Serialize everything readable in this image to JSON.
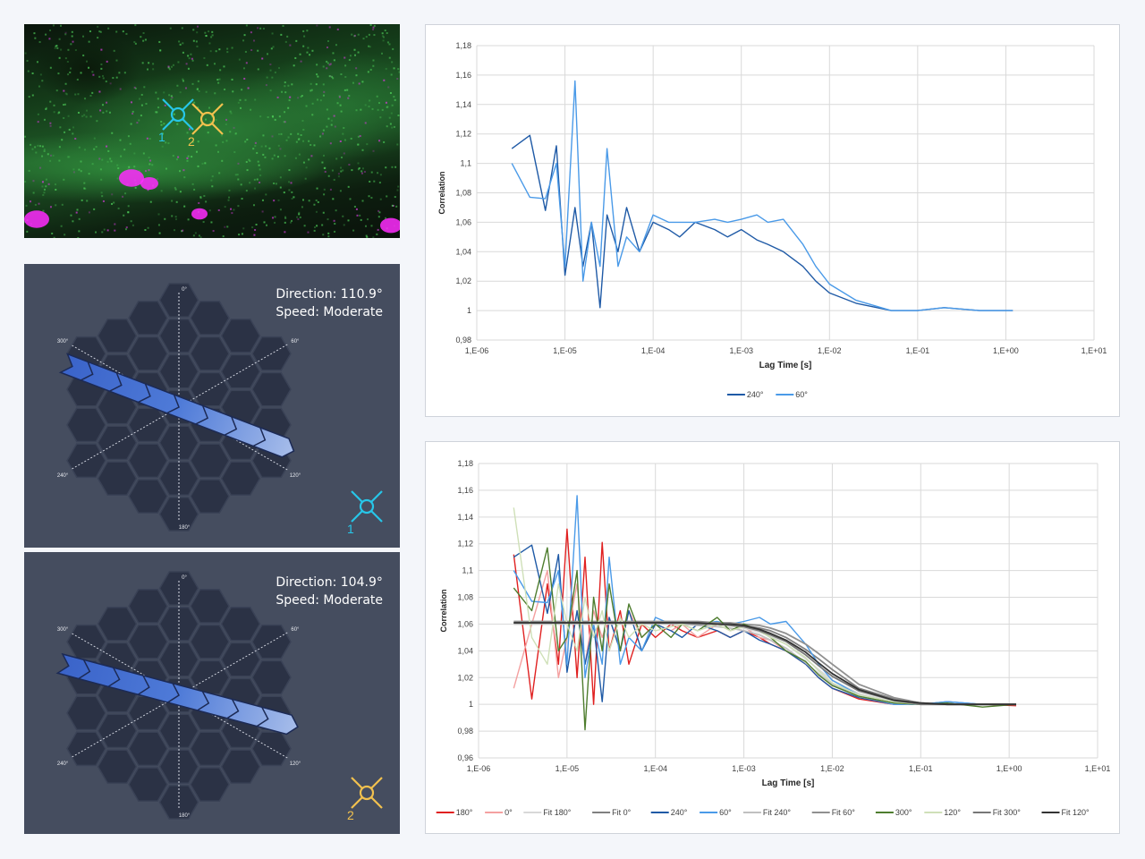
{
  "microscopy": {
    "markers": [
      {
        "label": "1",
        "color": "#27c6e8"
      },
      {
        "label": "2",
        "color": "#f2c14e"
      }
    ]
  },
  "panels": [
    {
      "direction": "Direction: 110.9°",
      "speed": "Speed: Moderate",
      "marker_label": "1",
      "marker_color": "#27c6e8",
      "angle": 110.9,
      "angle_labels": [
        "0°",
        "60°",
        "120°",
        "180°",
        "240°",
        "300°"
      ]
    },
    {
      "direction": "Direction: 104.9°",
      "speed": "Speed: Moderate",
      "marker_label": "2",
      "marker_color": "#f2c14e",
      "angle": 104.9,
      "angle_labels": [
        "0°",
        "60°",
        "120°",
        "180°",
        "240°",
        "300°"
      ]
    }
  ],
  "chart_data": [
    {
      "type": "line",
      "xscale": "log",
      "xlabel": "Lag Time [s]",
      "ylabel": "Correlation",
      "xlim": [
        1e-06,
        10
      ],
      "ylim": [
        0.98,
        1.18
      ],
      "grid": true,
      "legend": "bottom",
      "xticks": [
        "1,E-06",
        "1,E-05",
        "1,E-04",
        "1,E-03",
        "1,E-02",
        "1,E-01",
        "1,E+00",
        "1,E+01"
      ],
      "yticks": [
        "0,98",
        "1",
        "1,02",
        "1,04",
        "1,06",
        "1,08",
        "1,1",
        "1,12",
        "1,14",
        "1,16",
        "1,18"
      ],
      "x": [
        2.5e-06,
        4e-06,
        6e-06,
        8e-06,
        1e-05,
        1.3e-05,
        1.6e-05,
        2e-05,
        2.5e-05,
        3e-05,
        4e-05,
        5e-05,
        7e-05,
        0.0001,
        0.00015,
        0.0002,
        0.0003,
        0.0005,
        0.0007,
        0.001,
        0.0015,
        0.002,
        0.003,
        0.005,
        0.007,
        0.01,
        0.02,
        0.05,
        0.1,
        0.2,
        0.5,
        1.2
      ],
      "series": [
        {
          "name": "240°",
          "color": "#1f5aa6",
          "values": [
            1.11,
            1.119,
            1.068,
            1.112,
            1.024,
            1.07,
            1.03,
            1.06,
            1.002,
            1.065,
            1.04,
            1.07,
            1.04,
            1.06,
            1.055,
            1.05,
            1.06,
            1.055,
            1.05,
            1.055,
            1.048,
            1.045,
            1.04,
            1.03,
            1.02,
            1.012,
            1.005,
            1.0,
            1.0,
            1.002,
            1.0,
            1.0
          ]
        },
        {
          "name": "60°",
          "color": "#4a9ae8",
          "values": [
            1.1,
            1.077,
            1.076,
            1.1,
            1.03,
            1.156,
            1.02,
            1.06,
            1.03,
            1.11,
            1.03,
            1.05,
            1.04,
            1.065,
            1.06,
            1.06,
            1.06,
            1.062,
            1.06,
            1.062,
            1.065,
            1.06,
            1.062,
            1.045,
            1.03,
            1.018,
            1.007,
            1.0,
            1.0,
            1.002,
            1.0,
            1.0
          ]
        }
      ]
    },
    {
      "type": "line",
      "xscale": "log",
      "xlabel": "Lag Time [s]",
      "ylabel": "Correlation",
      "xlim": [
        1e-06,
        10
      ],
      "ylim": [
        0.96,
        1.18
      ],
      "grid": true,
      "legend": "bottom",
      "xticks": [
        "1,E-06",
        "1,E-05",
        "1,E-04",
        "1,E-03",
        "1,E-02",
        "1,E-01",
        "1,E+00",
        "1,E+01"
      ],
      "yticks": [
        "0,96",
        "0,98",
        "1",
        "1,02",
        "1,04",
        "1,06",
        "1,08",
        "1,1",
        "1,12",
        "1,14",
        "1,16",
        "1,18"
      ],
      "x": [
        2.5e-06,
        4e-06,
        6e-06,
        8e-06,
        1e-05,
        1.3e-05,
        1.6e-05,
        2e-05,
        2.5e-05,
        3e-05,
        4e-05,
        5e-05,
        7e-05,
        0.0001,
        0.00015,
        0.0002,
        0.0003,
        0.0005,
        0.0007,
        0.001,
        0.0015,
        0.002,
        0.003,
        0.005,
        0.007,
        0.01,
        0.02,
        0.05,
        0.1,
        0.2,
        0.5,
        1.2
      ],
      "series": [
        {
          "name": "180°",
          "color": "#e02020",
          "values": [
            1.112,
            1.004,
            1.09,
            1.03,
            1.131,
            1.02,
            1.11,
            1.0,
            1.121,
            1.04,
            1.07,
            1.03,
            1.06,
            1.05,
            1.06,
            1.055,
            1.05,
            1.055,
            1.05,
            1.055,
            1.05,
            1.045,
            1.04,
            1.03,
            1.02,
            1.012,
            1.004,
            1.0,
            1.0,
            1.0,
            1.0,
            0.999
          ]
        },
        {
          "name": "0°",
          "color": "#f4a0a0",
          "values": [
            1.012,
            1.06,
            1.1,
            1.02,
            1.05,
            1.09,
            1.03,
            1.07,
            1.05,
            1.065,
            1.04,
            1.07,
            1.05,
            1.06,
            1.055,
            1.06,
            1.05,
            1.06,
            1.055,
            1.058,
            1.05,
            1.048,
            1.04,
            1.03,
            1.02,
            1.012,
            1.005,
            1.0,
            1.0,
            1.0,
            1.0,
            1.0
          ]
        },
        {
          "name": "Fit 180°",
          "color": "#d8d8d8",
          "values": [
            1.061,
            1.061,
            1.061,
            1.061,
            1.061,
            1.061,
            1.061,
            1.061,
            1.061,
            1.061,
            1.061,
            1.061,
            1.061,
            1.061,
            1.061,
            1.061,
            1.06,
            1.06,
            1.059,
            1.057,
            1.054,
            1.051,
            1.045,
            1.034,
            1.026,
            1.018,
            1.008,
            1.002,
            1.0,
            1.0,
            1.0,
            1.0
          ]
        },
        {
          "name": "Fit 0°",
          "color": "#808080",
          "values": [
            1.061,
            1.061,
            1.061,
            1.061,
            1.061,
            1.061,
            1.061,
            1.061,
            1.061,
            1.061,
            1.061,
            1.061,
            1.061,
            1.061,
            1.061,
            1.061,
            1.061,
            1.06,
            1.06,
            1.059,
            1.057,
            1.055,
            1.05,
            1.041,
            1.034,
            1.026,
            1.012,
            1.004,
            1.001,
            1.0,
            1.0,
            1.0
          ]
        },
        {
          "name": "240°",
          "color": "#1f5aa6",
          "values": [
            1.11,
            1.119,
            1.068,
            1.112,
            1.024,
            1.07,
            1.03,
            1.06,
            1.002,
            1.065,
            1.04,
            1.07,
            1.04,
            1.06,
            1.055,
            1.05,
            1.06,
            1.055,
            1.05,
            1.055,
            1.048,
            1.045,
            1.04,
            1.03,
            1.02,
            1.012,
            1.005,
            1.0,
            1.0,
            1.002,
            1.0,
            1.0
          ]
        },
        {
          "name": "60°",
          "color": "#4a9ae8",
          "values": [
            1.1,
            1.077,
            1.076,
            1.1,
            1.03,
            1.156,
            1.02,
            1.06,
            1.03,
            1.11,
            1.03,
            1.05,
            1.04,
            1.065,
            1.06,
            1.06,
            1.06,
            1.062,
            1.06,
            1.062,
            1.065,
            1.06,
            1.062,
            1.045,
            1.03,
            1.018,
            1.007,
            1.0,
            1.0,
            1.002,
            1.0,
            1.0
          ]
        },
        {
          "name": "Fit 240°",
          "color": "#c0c0c0",
          "values": [
            1.06,
            1.06,
            1.06,
            1.06,
            1.06,
            1.06,
            1.06,
            1.06,
            1.06,
            1.06,
            1.06,
            1.06,
            1.06,
            1.06,
            1.06,
            1.06,
            1.059,
            1.058,
            1.057,
            1.055,
            1.052,
            1.048,
            1.042,
            1.031,
            1.023,
            1.015,
            1.006,
            1.001,
            1.0,
            1.0,
            1.0,
            1.0
          ]
        },
        {
          "name": "Fit 60°",
          "color": "#909090",
          "values": [
            1.062,
            1.062,
            1.062,
            1.062,
            1.062,
            1.062,
            1.062,
            1.062,
            1.062,
            1.062,
            1.062,
            1.062,
            1.062,
            1.062,
            1.062,
            1.062,
            1.062,
            1.061,
            1.061,
            1.06,
            1.059,
            1.057,
            1.053,
            1.045,
            1.038,
            1.03,
            1.015,
            1.005,
            1.001,
            1.0,
            1.0,
            1.0
          ]
        },
        {
          "name": "300°",
          "color": "#4e7d2e",
          "values": [
            1.087,
            1.07,
            1.117,
            1.04,
            1.05,
            1.1,
            0.981,
            1.08,
            1.04,
            1.09,
            1.04,
            1.075,
            1.05,
            1.06,
            1.05,
            1.06,
            1.055,
            1.065,
            1.055,
            1.06,
            1.055,
            1.05,
            1.04,
            1.032,
            1.022,
            1.014,
            1.006,
            1.001,
            1.0,
            1.001,
            0.998,
            1.0
          ]
        },
        {
          "name": "120°",
          "color": "#cfe0b8",
          "values": [
            1.147,
            1.05,
            1.03,
            1.09,
            1.06,
            1.04,
            1.08,
            1.05,
            1.07,
            1.04,
            1.065,
            1.05,
            1.06,
            1.055,
            1.058,
            1.06,
            1.055,
            1.06,
            1.055,
            1.058,
            1.055,
            1.05,
            1.045,
            1.035,
            1.025,
            1.016,
            1.007,
            1.002,
            1.0,
            1.0,
            1.0,
            1.0
          ]
        },
        {
          "name": "Fit 300°",
          "color": "#777777",
          "values": [
            1.061,
            1.061,
            1.061,
            1.061,
            1.061,
            1.061,
            1.061,
            1.061,
            1.061,
            1.061,
            1.061,
            1.061,
            1.061,
            1.061,
            1.061,
            1.061,
            1.06,
            1.06,
            1.059,
            1.058,
            1.055,
            1.052,
            1.047,
            1.037,
            1.029,
            1.021,
            1.01,
            1.003,
            1.0,
            1.0,
            1.0,
            1.0
          ]
        },
        {
          "name": "Fit 120°",
          "color": "#333333",
          "values": [
            1.061,
            1.061,
            1.061,
            1.061,
            1.061,
            1.061,
            1.061,
            1.061,
            1.061,
            1.061,
            1.061,
            1.061,
            1.061,
            1.061,
            1.061,
            1.061,
            1.061,
            1.06,
            1.06,
            1.059,
            1.056,
            1.053,
            1.048,
            1.039,
            1.031,
            1.023,
            1.011,
            1.003,
            1.001,
            1.0,
            1.0,
            1.0
          ]
        }
      ]
    }
  ]
}
